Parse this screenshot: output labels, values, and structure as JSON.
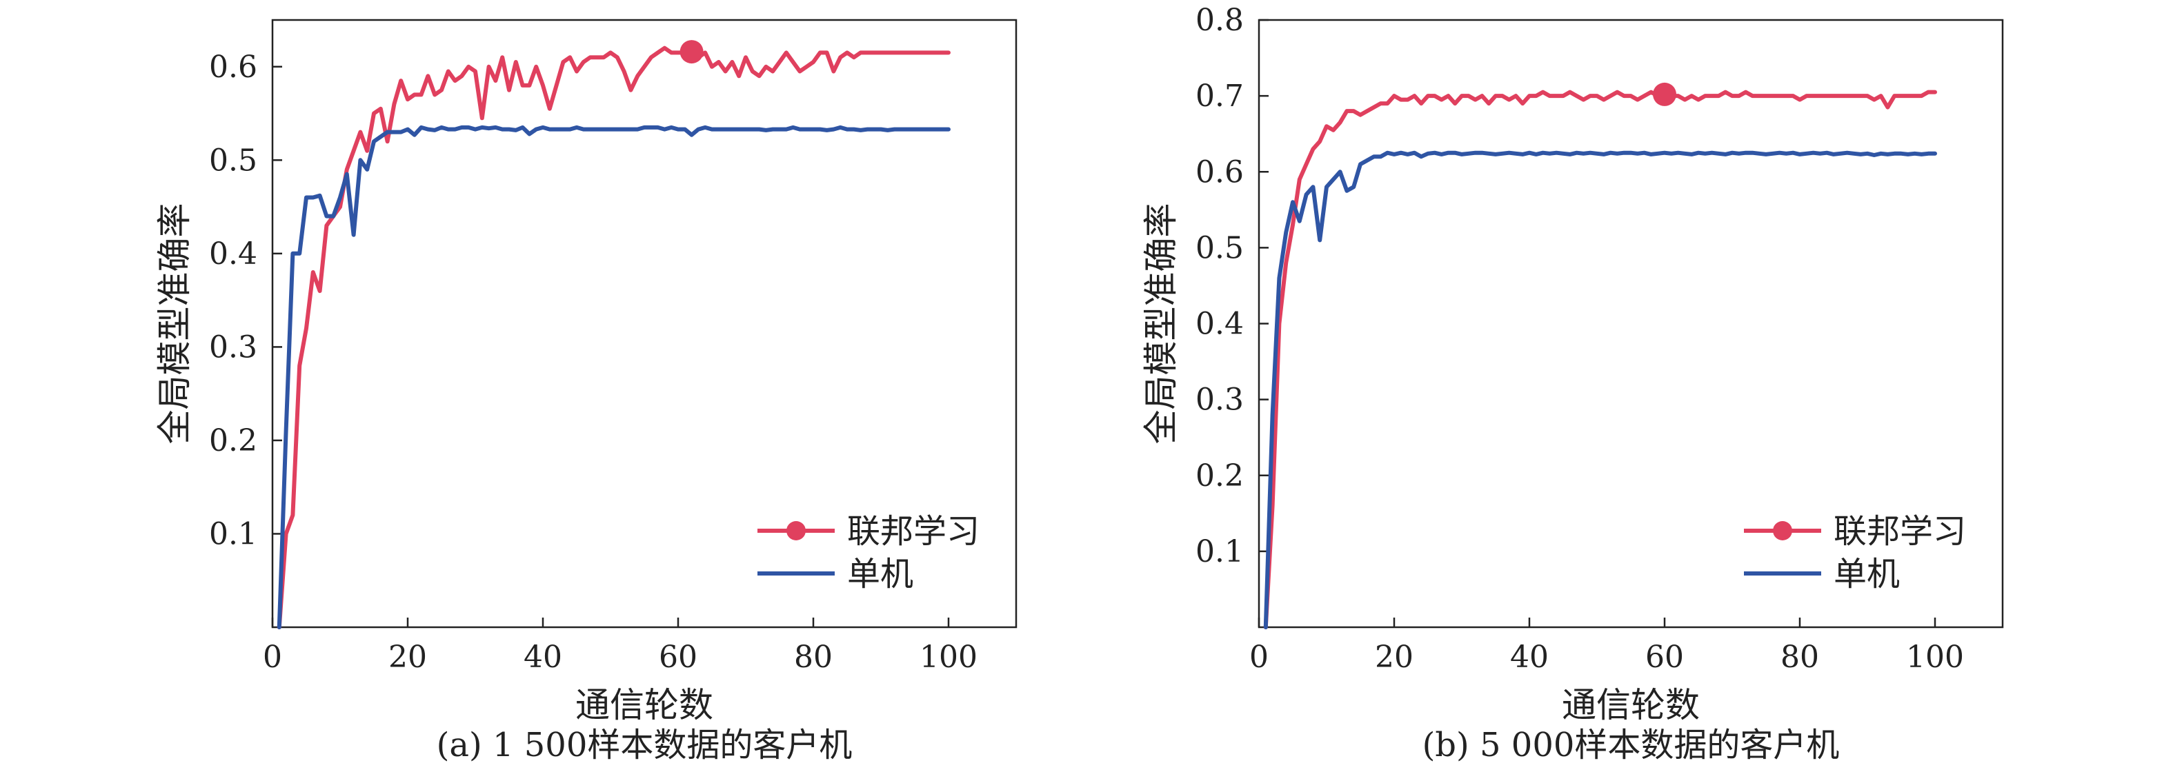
{
  "colors": {
    "federated": "#e0405e",
    "standalone": "#2f55a4",
    "axis": "#222222"
  },
  "chart_data": [
    {
      "type": "line",
      "caption": "(a)  1 500样本数据的客户机",
      "xlabel": "通信轮数",
      "ylabel": "全局模型准确率",
      "xlim": [
        0,
        110
      ],
      "ylim": [
        0,
        0.65
      ],
      "xticks": [
        0,
        20,
        40,
        60,
        80,
        100
      ],
      "yticks": [
        0.1,
        0.2,
        0.3,
        0.4,
        0.5,
        0.6
      ],
      "grid": false,
      "legend_position": "bottom-right",
      "marker": {
        "series": 0,
        "x": 62,
        "y": 0.616
      },
      "series": [
        {
          "name": "联邦学习",
          "x": [
            1,
            2,
            3,
            4,
            5,
            6,
            7,
            8,
            9,
            10,
            11,
            12,
            13,
            14,
            15,
            16,
            17,
            18,
            19,
            20,
            21,
            22,
            23,
            24,
            25,
            26,
            27,
            28,
            29,
            30,
            31,
            32,
            33,
            34,
            35,
            36,
            37,
            38,
            39,
            40,
            41,
            42,
            43,
            44,
            45,
            46,
            47,
            48,
            49,
            50,
            51,
            52,
            53,
            54,
            55,
            56,
            57,
            58,
            59,
            60,
            61,
            62,
            63,
            64,
            65,
            66,
            67,
            68,
            69,
            70,
            71,
            72,
            73,
            74,
            75,
            76,
            77,
            78,
            79,
            80,
            81,
            82,
            83,
            84,
            85,
            86,
            87,
            88,
            89,
            90,
            91,
            92,
            93,
            94,
            95,
            96,
            97,
            98,
            99,
            100
          ],
          "values": [
            0.0,
            0.1,
            0.12,
            0.28,
            0.32,
            0.38,
            0.36,
            0.43,
            0.44,
            0.45,
            0.49,
            0.51,
            0.53,
            0.51,
            0.55,
            0.555,
            0.52,
            0.56,
            0.585,
            0.565,
            0.57,
            0.57,
            0.59,
            0.57,
            0.575,
            0.595,
            0.585,
            0.59,
            0.6,
            0.595,
            0.545,
            0.6,
            0.585,
            0.61,
            0.575,
            0.605,
            0.58,
            0.58,
            0.6,
            0.58,
            0.555,
            0.58,
            0.605,
            0.61,
            0.595,
            0.605,
            0.61,
            0.61,
            0.61,
            0.615,
            0.61,
            0.595,
            0.575,
            0.59,
            0.6,
            0.61,
            0.615,
            0.62,
            0.615,
            0.615,
            0.615,
            0.616,
            0.61,
            0.615,
            0.6,
            0.605,
            0.595,
            0.605,
            0.59,
            0.61,
            0.595,
            0.59,
            0.6,
            0.595,
            0.605,
            0.615,
            0.605,
            0.595,
            0.6,
            0.605,
            0.615,
            0.615,
            0.595,
            0.61,
            0.615,
            0.61,
            0.615,
            0.615,
            0.615,
            0.615,
            0.615,
            0.615,
            0.615,
            0.615,
            0.615,
            0.615,
            0.615,
            0.615,
            0.615,
            0.615
          ]
        },
        {
          "name": "单机",
          "x": [
            1,
            2,
            3,
            4,
            5,
            6,
            7,
            8,
            9,
            10,
            11,
            12,
            13,
            14,
            15,
            16,
            17,
            18,
            19,
            20,
            21,
            22,
            23,
            24,
            25,
            26,
            27,
            28,
            29,
            30,
            31,
            32,
            33,
            34,
            35,
            36,
            37,
            38,
            39,
            40,
            41,
            42,
            43,
            44,
            45,
            46,
            47,
            48,
            49,
            50,
            51,
            52,
            53,
            54,
            55,
            56,
            57,
            58,
            59,
            60,
            61,
            62,
            63,
            64,
            65,
            66,
            67,
            68,
            69,
            70,
            71,
            72,
            73,
            74,
            75,
            76,
            77,
            78,
            79,
            80,
            81,
            82,
            83,
            84,
            85,
            86,
            87,
            88,
            89,
            90,
            91,
            92,
            93,
            94,
            95,
            96,
            97,
            98,
            99,
            100
          ],
          "values": [
            0.0,
            0.21,
            0.4,
            0.4,
            0.46,
            0.46,
            0.462,
            0.44,
            0.44,
            0.46,
            0.485,
            0.42,
            0.5,
            0.49,
            0.52,
            0.525,
            0.53,
            0.53,
            0.53,
            0.533,
            0.527,
            0.535,
            0.533,
            0.532,
            0.535,
            0.533,
            0.533,
            0.535,
            0.535,
            0.533,
            0.535,
            0.534,
            0.535,
            0.533,
            0.533,
            0.532,
            0.535,
            0.528,
            0.533,
            0.535,
            0.533,
            0.533,
            0.533,
            0.533,
            0.535,
            0.533,
            0.533,
            0.533,
            0.533,
            0.533,
            0.533,
            0.533,
            0.533,
            0.533,
            0.535,
            0.535,
            0.535,
            0.533,
            0.535,
            0.533,
            0.533,
            0.527,
            0.533,
            0.535,
            0.533,
            0.533,
            0.533,
            0.533,
            0.533,
            0.533,
            0.533,
            0.533,
            0.532,
            0.533,
            0.533,
            0.533,
            0.535,
            0.533,
            0.533,
            0.533,
            0.533,
            0.532,
            0.533,
            0.535,
            0.533,
            0.533,
            0.532,
            0.533,
            0.533,
            0.533,
            0.532,
            0.533,
            0.533,
            0.533,
            0.533,
            0.533,
            0.533,
            0.533,
            0.533,
            0.533
          ]
        }
      ]
    },
    {
      "type": "line",
      "caption": "(b)  5 000样本数据的客户机",
      "xlabel": "通信轮数",
      "ylabel": "全局模型准确率",
      "xlim": [
        0,
        110
      ],
      "ylim": [
        0,
        0.8
      ],
      "xticks": [
        0,
        20,
        40,
        60,
        80,
        100
      ],
      "yticks": [
        0.1,
        0.2,
        0.3,
        0.4,
        0.5,
        0.6,
        0.7,
        0.8
      ],
      "grid": false,
      "legend_position": "bottom-right",
      "marker": {
        "series": 0,
        "x": 60,
        "y": 0.702
      },
      "series": [
        {
          "name": "联邦学习",
          "x": [
            1,
            2,
            3,
            4,
            5,
            6,
            7,
            8,
            9,
            10,
            11,
            12,
            13,
            14,
            15,
            16,
            17,
            18,
            19,
            20,
            21,
            22,
            23,
            24,
            25,
            26,
            27,
            28,
            29,
            30,
            31,
            32,
            33,
            34,
            35,
            36,
            37,
            38,
            39,
            40,
            41,
            42,
            43,
            44,
            45,
            46,
            47,
            48,
            49,
            50,
            51,
            52,
            53,
            54,
            55,
            56,
            57,
            58,
            59,
            60,
            61,
            62,
            63,
            64,
            65,
            66,
            67,
            68,
            69,
            70,
            71,
            72,
            73,
            74,
            75,
            76,
            77,
            78,
            79,
            80,
            81,
            82,
            83,
            84,
            85,
            86,
            87,
            88,
            89,
            90,
            91,
            92,
            93,
            94,
            95,
            96,
            97,
            98,
            99,
            100
          ],
          "values": [
            0.0,
            0.16,
            0.4,
            0.48,
            0.53,
            0.59,
            0.61,
            0.63,
            0.64,
            0.66,
            0.655,
            0.665,
            0.68,
            0.68,
            0.675,
            0.68,
            0.685,
            0.69,
            0.69,
            0.7,
            0.695,
            0.695,
            0.7,
            0.69,
            0.7,
            0.7,
            0.695,
            0.7,
            0.69,
            0.7,
            0.7,
            0.695,
            0.7,
            0.69,
            0.7,
            0.7,
            0.695,
            0.7,
            0.69,
            0.7,
            0.7,
            0.705,
            0.7,
            0.7,
            0.7,
            0.705,
            0.7,
            0.695,
            0.7,
            0.7,
            0.695,
            0.7,
            0.705,
            0.7,
            0.7,
            0.695,
            0.7,
            0.705,
            0.7,
            0.702,
            0.7,
            0.7,
            0.695,
            0.7,
            0.695,
            0.7,
            0.7,
            0.7,
            0.705,
            0.7,
            0.7,
            0.705,
            0.7,
            0.7,
            0.7,
            0.7,
            0.7,
            0.7,
            0.7,
            0.695,
            0.7,
            0.7,
            0.7,
            0.7,
            0.7,
            0.7,
            0.7,
            0.7,
            0.7,
            0.7,
            0.695,
            0.7,
            0.685,
            0.7,
            0.7,
            0.7,
            0.7,
            0.7,
            0.705,
            0.705
          ]
        },
        {
          "name": "单机",
          "x": [
            1,
            2,
            3,
            4,
            5,
            6,
            7,
            8,
            9,
            10,
            11,
            12,
            13,
            14,
            15,
            16,
            17,
            18,
            19,
            20,
            21,
            22,
            23,
            24,
            25,
            26,
            27,
            28,
            29,
            30,
            31,
            32,
            33,
            34,
            35,
            36,
            37,
            38,
            39,
            40,
            41,
            42,
            43,
            44,
            45,
            46,
            47,
            48,
            49,
            50,
            51,
            52,
            53,
            54,
            55,
            56,
            57,
            58,
            59,
            60,
            61,
            62,
            63,
            64,
            65,
            66,
            67,
            68,
            69,
            70,
            71,
            72,
            73,
            74,
            75,
            76,
            77,
            78,
            79,
            80,
            81,
            82,
            83,
            84,
            85,
            86,
            87,
            88,
            89,
            90,
            91,
            92,
            93,
            94,
            95,
            96,
            97,
            98,
            99,
            100
          ],
          "values": [
            0.0,
            0.28,
            0.46,
            0.52,
            0.56,
            0.535,
            0.57,
            0.58,
            0.51,
            0.58,
            0.59,
            0.6,
            0.575,
            0.58,
            0.61,
            0.615,
            0.62,
            0.62,
            0.625,
            0.623,
            0.625,
            0.623,
            0.625,
            0.62,
            0.624,
            0.625,
            0.623,
            0.625,
            0.625,
            0.623,
            0.624,
            0.625,
            0.625,
            0.624,
            0.623,
            0.624,
            0.625,
            0.624,
            0.623,
            0.625,
            0.623,
            0.625,
            0.624,
            0.625,
            0.624,
            0.623,
            0.625,
            0.624,
            0.625,
            0.624,
            0.623,
            0.625,
            0.624,
            0.625,
            0.625,
            0.624,
            0.625,
            0.623,
            0.624,
            0.625,
            0.624,
            0.625,
            0.624,
            0.623,
            0.625,
            0.624,
            0.625,
            0.624,
            0.623,
            0.625,
            0.624,
            0.625,
            0.625,
            0.624,
            0.623,
            0.624,
            0.625,
            0.624,
            0.625,
            0.623,
            0.624,
            0.625,
            0.624,
            0.625,
            0.623,
            0.624,
            0.625,
            0.624,
            0.623,
            0.624,
            0.622,
            0.624,
            0.623,
            0.624,
            0.624,
            0.623,
            0.624,
            0.623,
            0.624,
            0.624
          ]
        }
      ]
    }
  ]
}
